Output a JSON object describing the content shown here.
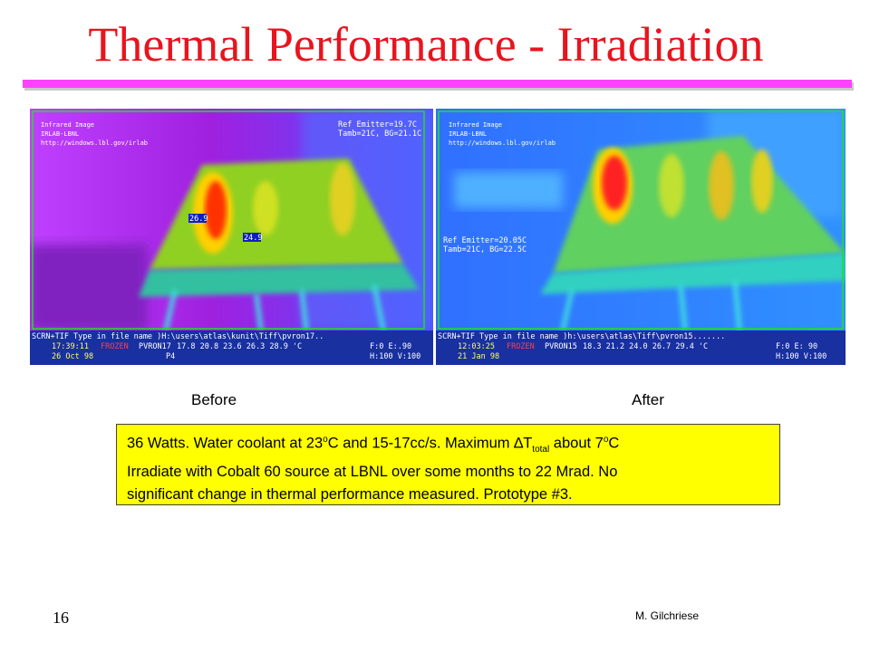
{
  "header": {
    "title": "Thermal Performance - Irradiation"
  },
  "images": [
    {
      "caption": "Before",
      "overlay": {
        "lines": [
          "Infrared Image",
          "IRLAB-LBNL",
          "http://windows.lbl.gov/irlab"
        ],
        "ref": [
          "Ref Emitter=19.7C",
          "Tamb=21C, BG=21.1C"
        ],
        "markers": [
          "26.9",
          "24.9"
        ],
        "status": {
          "command": "SCRN+TIF   Type in file name )H:\\users\\atlas\\kunit\\Tiff\\pvron17..",
          "time": "17:39:11",
          "state": "FROZEN",
          "file": "PVRON17",
          "scale": "17.8   20.8   23.6   26.3   28.9 'C",
          "emissivity": "F:0  E:.90",
          "date": "26 Oct 98",
          "page": "P4",
          "zoom": "H:100 V:100"
        }
      }
    },
    {
      "caption": "After",
      "overlay": {
        "lines": [
          "Infrared Image",
          "IRLAB-LBNL",
          "http://windows.lbl.gov/irlab"
        ],
        "ref": [
          "Ref Emitter=20.05C",
          "Tamb=21C, BG=22.5C"
        ],
        "markers": [],
        "status": {
          "command": "SCRN+TIF   Type in file name )h:\\users\\atlas\\Tiff\\pvron15.......",
          "time": "12:03:25",
          "state": "FROZEN",
          "file": "PVRON15",
          "scale": "18.3   21.2   24.0   26.7   29.4 'C",
          "emissivity": "F:0  E: 90",
          "date": "21 Jan 98",
          "page": "",
          "zoom": "H:100 V:100"
        }
      }
    }
  ],
  "note": {
    "parts": [
      "36 Watts. Water coolant at 23",
      "o",
      "C and 15-17cc/s. Maximum ",
      "∆T",
      "total",
      " about 7",
      "o",
      "C"
    ],
    "lines": [
      "Irradiate with Cobalt 60 source at LBNL over some months to 22 Mrad. No",
      "significant change in thermal performance measured. Prototype #3."
    ]
  },
  "footer": {
    "page_number": "16",
    "author": "M. Gilchriese"
  }
}
